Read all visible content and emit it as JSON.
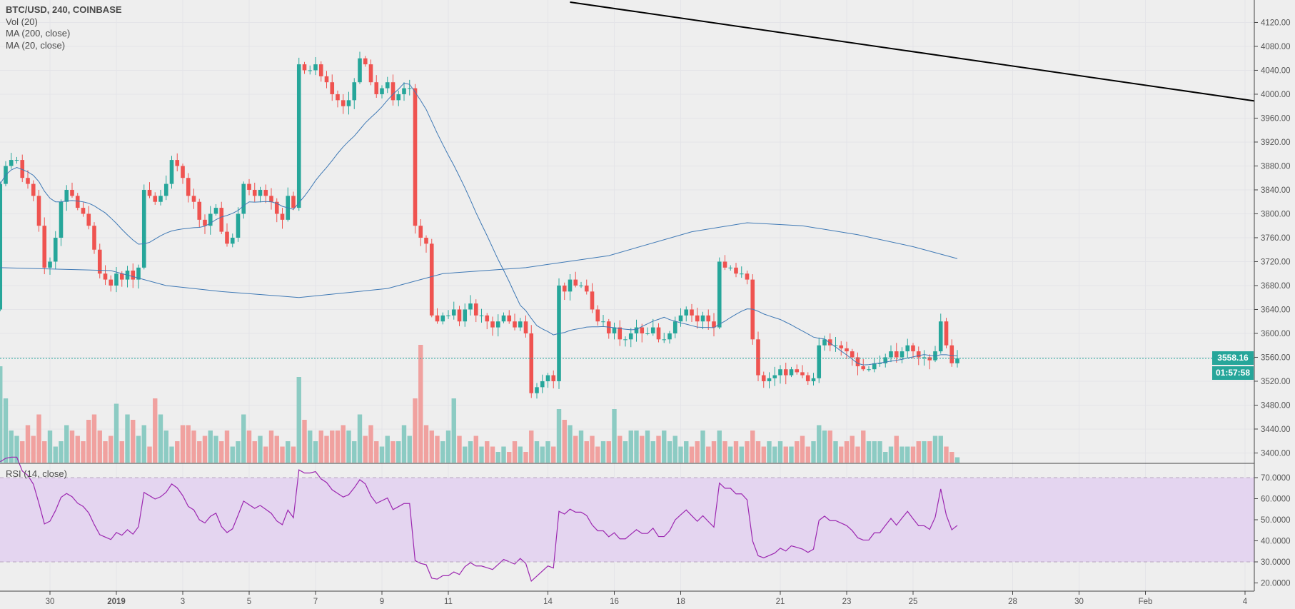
{
  "legend": {
    "title": "BTC/USD, 240, COINBASE",
    "indicators": [
      "Vol (20)",
      "MA (200, close)",
      "MA (20, close)"
    ]
  },
  "rsi_label": "RSI (14, close)",
  "last_price": "3558.16",
  "countdown": "01:57:58",
  "colors": {
    "up": "#26a69a",
    "down": "#ef5350",
    "vol_up": "#8ccbc3",
    "vol_down": "#f0a19f",
    "ma": "#3f79b5",
    "rsi": "#9c27b0",
    "rsi_band": "#e4d5f0",
    "background": "#eeeeee",
    "trendline": "#000000"
  },
  "chart_data": {
    "type": "candlestick",
    "symbol": "BTC/USD",
    "interval": "240",
    "exchange": "COINBASE",
    "first_bar": "2018-12-28 12:00",
    "bar_hours": 4,
    "close": [
      3850,
      3880,
      3890,
      3890,
      3860,
      3850,
      3830,
      3780,
      3710,
      3720,
      3760,
      3820,
      3840,
      3830,
      3810,
      3800,
      3780,
      3740,
      3700,
      3690,
      3680,
      3700,
      3690,
      3705,
      3690,
      3710,
      3840,
      3830,
      3820,
      3830,
      3850,
      3890,
      3880,
      3860,
      3830,
      3820,
      3790,
      3780,
      3800,
      3810,
      3770,
      3750,
      3760,
      3800,
      3850,
      3840,
      3830,
      3840,
      3830,
      3820,
      3800,
      3790,
      3830,
      3810,
      4050,
      4040,
      4040,
      4050,
      4030,
      4020,
      4000,
      3990,
      3980,
      3990,
      4020,
      4060,
      4050,
      4020,
      4000,
      4010,
      4020,
      3990,
      4000,
      4010,
      4010,
      3780,
      3760,
      3750,
      3630,
      3620,
      3630,
      3630,
      3640,
      3620,
      3640,
      3650,
      3630,
      3630,
      3620,
      3610,
      3620,
      3630,
      3620,
      3610,
      3620,
      3600,
      3500,
      3510,
      3520,
      3530,
      3520,
      3680,
      3670,
      3690,
      3680,
      3680,
      3670,
      3640,
      3620,
      3620,
      3600,
      3610,
      3590,
      3590,
      3600,
      3610,
      3600,
      3600,
      3610,
      3590,
      3590,
      3600,
      3620,
      3630,
      3640,
      3630,
      3620,
      3630,
      3620,
      3610,
      3720,
      3710,
      3710,
      3700,
      3700,
      3690,
      3590,
      3530,
      3520,
      3525,
      3530,
      3540,
      3530,
      3540,
      3535,
      3530,
      3520,
      3525,
      3580,
      3590,
      3580,
      3580,
      3575,
      3570,
      3560,
      3545,
      3540,
      3540,
      3550,
      3550,
      3560,
      3570,
      3560,
      3570,
      3580,
      3570,
      3560,
      3560,
      3555,
      3570,
      3620,
      3580,
      3550,
      3558.16
    ],
    "first_open": 3640,
    "volume": [
      90,
      60,
      30,
      25,
      20,
      35,
      25,
      45,
      20,
      30,
      15,
      20,
      35,
      30,
      25,
      20,
      40,
      45,
      30,
      20,
      25,
      55,
      20,
      45,
      40,
      25,
      35,
      15,
      60,
      45,
      30,
      15,
      20,
      35,
      35,
      30,
      20,
      25,
      30,
      25,
      20,
      30,
      15,
      20,
      45,
      30,
      20,
      25,
      15,
      30,
      25,
      15,
      20,
      15,
      80,
      40,
      30,
      20,
      30,
      25,
      30,
      30,
      35,
      30,
      20,
      45,
      25,
      35,
      20,
      15,
      25,
      20,
      20,
      35,
      25,
      60,
      110,
      35,
      30,
      25,
      20,
      30,
      60,
      25,
      15,
      20,
      25,
      15,
      20,
      15,
      10,
      15,
      10,
      20,
      15,
      10,
      30,
      20,
      15,
      20,
      15,
      50,
      40,
      35,
      25,
      30,
      20,
      25,
      15,
      20,
      20,
      50,
      25,
      20,
      30,
      30,
      25,
      30,
      20,
      25,
      30,
      20,
      25,
      15,
      20,
      15,
      20,
      30,
      15,
      20,
      30,
      20,
      15,
      20,
      15,
      20,
      30,
      20,
      15,
      20,
      15,
      20,
      15,
      15,
      20,
      25,
      15,
      20,
      35,
      30,
      30,
      20,
      15,
      20,
      25,
      15,
      30,
      20,
      20,
      20,
      10,
      15,
      25,
      15,
      15,
      15,
      20,
      20,
      20,
      25,
      25,
      15,
      10,
      5
    ],
    "ma200": [
      [
        0,
        3710
      ],
      [
        20,
        3705
      ],
      [
        30,
        3680
      ],
      [
        40,
        3670
      ],
      [
        54,
        3660
      ],
      [
        70,
        3675
      ],
      [
        80,
        3700
      ],
      [
        95,
        3710
      ],
      [
        110,
        3730
      ],
      [
        125,
        3770
      ],
      [
        135,
        3785
      ],
      [
        145,
        3780
      ],
      [
        155,
        3765
      ],
      [
        165,
        3745
      ],
      [
        173,
        3725
      ]
    ],
    "trendline": [
      [
        "2019-01-14 16:00",
        4154
      ],
      [
        "2019-02-04 06:00",
        3989
      ]
    ],
    "price_ticks": [
      "3400.00",
      "3440.00",
      "3480.00",
      "3520.00",
      "3560.00",
      "3600.00",
      "3640.00",
      "3680.00",
      "3720.00",
      "3760.00",
      "3800.00",
      "3840.00",
      "3880.00",
      "3920.00",
      "3960.00",
      "4000.00",
      "4040.00",
      "4080.00",
      "4120.00"
    ],
    "rsi_ticks": [
      "20.0000",
      "30.0000",
      "40.0000",
      "50.0000",
      "60.0000",
      "70.0000"
    ],
    "rsi_bands": [
      30,
      70
    ],
    "time_ticks": [
      {
        "label": "30",
        "date": "2018-12-30"
      },
      {
        "label": "2019",
        "date": "2019-01-01"
      },
      {
        "label": "3",
        "date": "2019-01-03"
      },
      {
        "label": "5",
        "date": "2019-01-05"
      },
      {
        "label": "7",
        "date": "2019-01-07"
      },
      {
        "label": "9",
        "date": "2019-01-09"
      },
      {
        "label": "11",
        "date": "2019-01-11"
      },
      {
        "label": "14",
        "date": "2019-01-14"
      },
      {
        "label": "16",
        "date": "2019-01-16"
      },
      {
        "label": "18",
        "date": "2019-01-18"
      },
      {
        "label": "21",
        "date": "2019-01-21"
      },
      {
        "label": "23",
        "date": "2019-01-23"
      },
      {
        "label": "25",
        "date": "2019-01-25"
      },
      {
        "label": "28",
        "date": "2019-01-28"
      },
      {
        "label": "30",
        "date": "2019-01-30"
      },
      {
        "label": "Feb",
        "date": "2019-02-01"
      },
      {
        "label": "4",
        "date": "2019-02-04"
      }
    ]
  }
}
